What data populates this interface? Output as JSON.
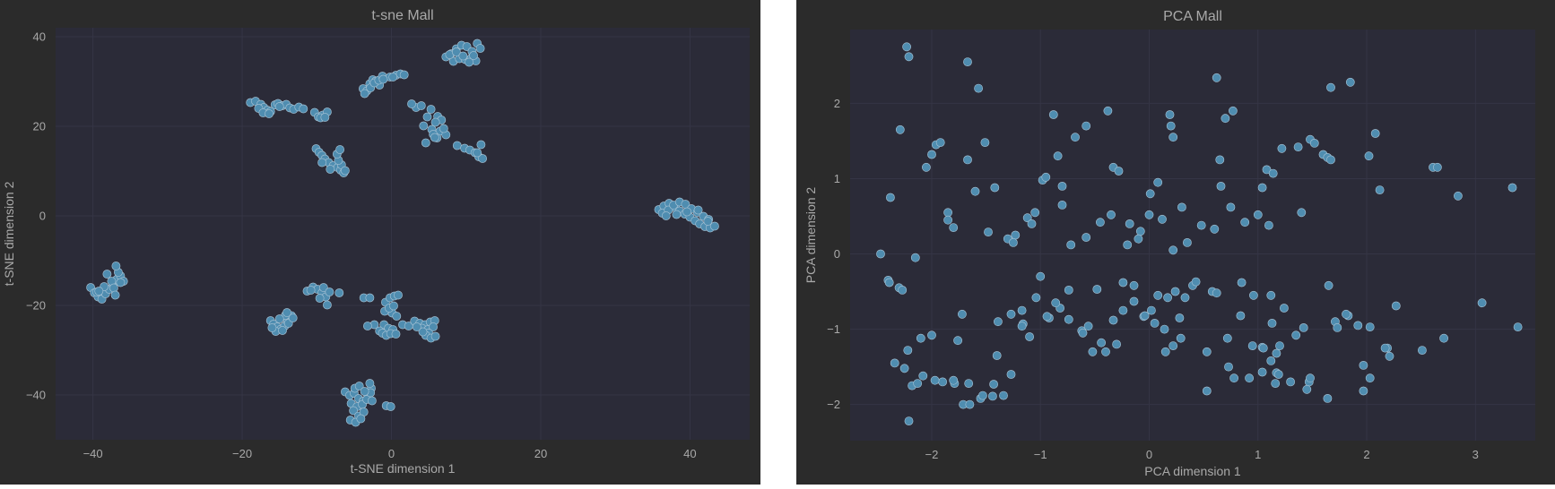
{
  "theme": {
    "figure_bg": "#2b2b2b",
    "axes_bg": "#2b2b38",
    "grid": "#353545",
    "text": "#a9a9a9",
    "point": "#4f8db0",
    "point_edge": "#a9c4d6"
  },
  "chart_data": [
    {
      "type": "scatter",
      "title": "t-sne Mall",
      "xlabel": "t-SNE dimension 1",
      "ylabel": "t-SNE dimension 2",
      "xlim": [
        -45,
        48
      ],
      "ylim": [
        -50,
        42
      ],
      "xticks": [
        -40,
        -20,
        0,
        20,
        40
      ],
      "yticks": [
        -40,
        -20,
        0,
        20,
        40
      ],
      "xtick_labels": [
        "−40",
        "−20",
        "0",
        "20",
        "40"
      ],
      "ytick_labels": [
        "−40",
        "−20",
        "0",
        "20",
        "40"
      ],
      "grid": true,
      "x": [
        -18.9,
        -18.2,
        -17.5,
        -17.1,
        -16.6,
        -16.2,
        -15.6,
        -15.2,
        -14.6,
        -14.1,
        -13.6,
        -13.1,
        -12.4,
        -11.8,
        -17.8,
        -17.2,
        -16.4,
        -15.0,
        -10.3,
        -9.8,
        -9.2,
        -8.6,
        -9.5,
        -8.9,
        -3.8,
        -3.3,
        -2.9,
        -2.5,
        -2.1,
        -1.6,
        -3.6,
        -2.8,
        -2.3,
        -1.7,
        -1.2,
        -0.2,
        0.6,
        1.2,
        1.7,
        -1.1,
        0.2,
        3.3,
        2.7,
        4.0,
        5.3,
        6.2,
        4.8,
        6.7,
        5.9,
        4.3,
        5.4,
        6.5,
        5.6,
        7.3,
        7.0,
        6.1,
        4.6,
        5.8,
        8.8,
        9.8,
        10.5,
        11.2,
        11.7,
        12.2,
        11.5,
        12.0,
        7.3,
        8.0,
        8.7,
        9.4,
        10.1,
        10.8,
        11.5,
        11.9,
        8.3,
        9.1,
        9.9,
        10.7,
        11.3,
        7.8,
        8.7,
        9.6,
        10.4,
        11.0,
        -10.1,
        -9.7,
        -9.3,
        -8.9,
        -8.4,
        -7.8,
        -7.2,
        -6.8,
        -6.4,
        -6.7,
        -7.1,
        -7.3,
        -6.9,
        -6.2,
        -8.2,
        -9.3,
        35.8,
        36.5,
        37.2,
        38.0,
        38.6,
        39.3,
        40.0,
        40.7,
        41.3,
        42.0,
        42.7,
        43.3,
        36.3,
        37.1,
        37.8,
        38.6,
        39.4,
        40.2,
        41.0,
        41.8,
        42.5,
        36.8,
        38.2,
        39.6,
        41.1,
        42.4,
        -40.3,
        -39.8,
        -39.3,
        -38.8,
        -38.3,
        -37.8,
        -37.3,
        -36.8,
        -36.3,
        -35.9,
        -39.5,
        -38.5,
        -37.5,
        -36.6,
        -36.9,
        -38.1,
        -39.2,
        -37.2,
        -36.3,
        -37.0,
        -16.2,
        -15.8,
        -15.3,
        -14.8,
        -14.3,
        -13.9,
        -13.4,
        -15.5,
        -14.6,
        -13.8,
        -14.2,
        -15.0,
        -16.0,
        -13.2,
        -14.0,
        -11.3,
        -10.5,
        -9.9,
        -9.3,
        -8.8,
        -8.6,
        -9.6,
        -10.8,
        -9.1,
        -8.3,
        -7.0,
        -3.7,
        -2.9,
        -0.8,
        -0.2,
        0.4,
        0.9,
        -0.5,
        0.1,
        0.7,
        -0.9,
        -0.3,
        0.3,
        -1.0,
        -0.4,
        0.2,
        -2.3,
        -1.6,
        -1.2,
        -0.7,
        -0.1,
        0.6,
        -3.2,
        1.5,
        2.3,
        3.1,
        3.8,
        4.5,
        5.2,
        5.8,
        4.1,
        4.9,
        5.6,
        5.0,
        4.6,
        5.3,
        5.9,
        4.2,
        3.4,
        -6.2,
        -5.6,
        -5.0,
        -4.4,
        -3.8,
        -3.2,
        -2.7,
        -5.4,
        -4.6,
        -3.9,
        -3.3,
        -2.8,
        -5.1,
        -4.4,
        -3.7,
        -2.9,
        -5.5,
        -4.8,
        -4.1,
        -4.9,
        -4.3,
        -3.6,
        -0.7,
        -0.1,
        -2.6
      ],
      "y": [
        25.3,
        25.6,
        24.9,
        24.2,
        23.6,
        23.3,
        24.8,
        25.1,
        24.6,
        24.9,
        24.1,
        23.8,
        24.3,
        23.9,
        24.0,
        23.0,
        22.8,
        24.4,
        23.1,
        22.1,
        22.5,
        23.2,
        21.9,
        22.0,
        28.4,
        27.9,
        29.5,
        30.4,
        30.1,
        29.2,
        27.3,
        28.6,
        29.7,
        30.3,
        31.2,
        31.0,
        31.4,
        31.7,
        31.5,
        30.5,
        31.0,
        24.2,
        25.0,
        24.6,
        23.8,
        22.2,
        22.1,
        21.4,
        20.9,
        20.1,
        19.3,
        18.9,
        18.2,
        18.1,
        19.5,
        17.4,
        16.3,
        17.5,
        15.7,
        15.1,
        14.7,
        14.1,
        13.2,
        12.8,
        14.1,
        15.9,
        35.5,
        36.2,
        37.3,
        38.1,
        37.8,
        36.7,
        38.5,
        37.4,
        34.5,
        35.1,
        34.9,
        35.2,
        34.6,
        36.0,
        36.6,
        35.7,
        34.3,
        35.8,
        15.0,
        14.2,
        13.5,
        12.7,
        11.9,
        11.2,
        10.8,
        10.2,
        9.6,
        11.4,
        12.4,
        13.8,
        14.8,
        10.1,
        10.4,
        11.9,
        1.4,
        2.2,
        2.8,
        1.9,
        1.1,
        0.4,
        -0.3,
        -1.1,
        -1.8,
        -2.4,
        -2.7,
        -2.3,
        0.6,
        1.3,
        2.4,
        3.1,
        2.6,
        1.6,
        0.8,
        -0.1,
        -0.8,
        0.0,
        0.3,
        0.9,
        1.3,
        -1.2,
        -16.0,
        -17.2,
        -18.1,
        -18.6,
        -17.4,
        -16.4,
        -15.3,
        -14.2,
        -13.4,
        -14.6,
        -17.0,
        -15.8,
        -14.6,
        -12.6,
        -11.2,
        -13.0,
        -16.8,
        -16.1,
        -14.9,
        -17.7,
        -23.4,
        -24.2,
        -24.8,
        -25.3,
        -24.6,
        -23.6,
        -22.3,
        -25.8,
        -25.6,
        -24.0,
        -22.2,
        -23.0,
        -25.0,
        -22.8,
        -21.6,
        -16.8,
        -15.9,
        -16.4,
        -17.2,
        -18.1,
        -19.9,
        -18.4,
        -16.6,
        -16.0,
        -17.0,
        -17.2,
        -18.3,
        -18.3,
        -19.3,
        -18.3,
        -17.9,
        -17.7,
        -21.1,
        -21.7,
        -22.4,
        -21.3,
        -20.6,
        -20.1,
        -24.3,
        -25.1,
        -25.4,
        -24.3,
        -25.7,
        -26.2,
        -26.7,
        -26.3,
        -26.4,
        -24.6,
        -24.3,
        -24.6,
        -23.5,
        -24.0,
        -24.3,
        -23.7,
        -23.4,
        -25.1,
        -25.4,
        -24.8,
        -26.2,
        -26.7,
        -27.3,
        -26.9,
        -25.9,
        -24.8,
        -39.3,
        -40.1,
        -39.6,
        -40.8,
        -41.4,
        -39.9,
        -38.5,
        -41.9,
        -42.6,
        -42.1,
        -41.0,
        -39.5,
        -43.5,
        -44.7,
        -43.8,
        -37.4,
        -45.6,
        -46.1,
        -45.3,
        -38.5,
        -38.0,
        -39.2,
        -42.4,
        -42.6,
        -41.3
      ]
    },
    {
      "type": "scatter",
      "title": "PCA Mall",
      "xlabel": "PCA dimension 1",
      "ylabel": "PCA dimension 2",
      "xlim": [
        -2.75,
        3.55
      ],
      "ylim": [
        -2.48,
        2.98
      ],
      "xticks": [
        -2,
        -1,
        0,
        1,
        2,
        3
      ],
      "yticks": [
        -2,
        -1,
        0,
        1,
        2
      ],
      "xtick_labels": [
        "−2",
        "−1",
        "0",
        "1",
        "2",
        "3"
      ],
      "ytick_labels": [
        "−2",
        "−1",
        "0",
        "1",
        "2"
      ],
      "grid": true,
      "x": [
        -2.23,
        -2.21,
        -1.67,
        -1.57,
        0.62,
        1.85,
        1.67,
        -2.29,
        -2.38,
        -2.47,
        -2.3,
        -2.15,
        -2.05,
        -2.0,
        -1.96,
        -1.92,
        -1.85,
        -1.85,
        -1.8,
        -1.67,
        -1.6,
        -1.51,
        -1.42,
        -1.3,
        -1.23,
        -1.12,
        -1.08,
        -0.98,
        -0.88,
        -0.84,
        -0.8,
        -0.68,
        -0.58,
        -0.38,
        -0.33,
        -0.28,
        -0.18,
        -0.08,
        0.01,
        0.08,
        0.19,
        0.2,
        0.22,
        0.3,
        0.65,
        0.66,
        0.7,
        0.77,
        1.04,
        1.08,
        1.14,
        1.22,
        1.37,
        1.4,
        1.48,
        1.52,
        1.6,
        1.64,
        1.67,
        2.02,
        2.08,
        2.12,
        2.61,
        2.65,
        2.84,
        3.34,
        -1.48,
        -1.72,
        -1.76,
        -1.4,
        -1.1,
        -1.0,
        -0.92,
        -0.82,
        -0.74,
        -0.62,
        -0.56,
        -0.48,
        -0.4,
        -0.3,
        -0.24,
        -0.14,
        -0.05,
        0.02,
        0.08,
        0.17,
        0.24,
        0.33,
        0.4,
        0.58,
        0.84,
        0.96,
        1.04,
        1.12,
        1.2,
        1.42,
        1.47,
        1.83,
        1.92,
        2.03,
        2.19,
        -1.25,
        -1.05,
        -0.95,
        -0.8,
        -0.72,
        -0.58,
        -0.45,
        -0.35,
        -0.2,
        -0.1,
        0.0,
        0.12,
        0.22,
        0.35,
        0.48,
        0.6,
        0.75,
        0.88,
        1.0,
        1.1,
        -2.4,
        -2.22,
        -2.1,
        -2.0,
        -1.9,
        -1.79,
        -1.66,
        -1.55,
        -1.44,
        -1.34,
        -1.27,
        -1.16,
        -1.04,
        -0.94,
        -0.86,
        -0.74,
        -0.61,
        -0.52,
        -0.44,
        -0.33,
        -0.24,
        -0.14,
        -0.04,
        0.05,
        0.15,
        0.22,
        0.28,
        0.43,
        0.53,
        0.62,
        0.72,
        0.78,
        0.85,
        0.95,
        1.04,
        1.13,
        1.17,
        1.24,
        1.35,
        1.48,
        1.65,
        1.71,
        1.73,
        1.81,
        1.97,
        2.03,
        2.17,
        2.21,
        2.27,
        2.51,
        2.71,
        3.06,
        3.39,
        -2.39,
        -2.34,
        -2.27,
        -2.25,
        -2.21,
        -2.18,
        -2.13,
        -2.08,
        -1.97,
        -1.8,
        -1.71,
        -1.65,
        -1.53,
        -1.43,
        -1.39,
        -1.27,
        -1.17,
        -1.17,
        0.14,
        0.29,
        0.53,
        0.73,
        0.92,
        1.05,
        1.12,
        1.16,
        1.17,
        1.19,
        1.3,
        1.45,
        1.64,
        1.97
      ],
      "y": [
        2.75,
        2.62,
        2.55,
        2.2,
        2.34,
        2.28,
        2.21,
        1.65,
        0.75,
        0.0,
        -0.45,
        -0.05,
        1.15,
        1.32,
        1.45,
        1.48,
        0.55,
        0.45,
        0.35,
        1.25,
        0.83,
        1.48,
        0.88,
        0.2,
        0.25,
        0.48,
        0.4,
        0.98,
        1.85,
        1.3,
        0.9,
        1.55,
        1.7,
        1.9,
        1.15,
        1.1,
        0.4,
        0.3,
        0.8,
        0.95,
        1.85,
        1.7,
        1.55,
        0.62,
        1.25,
        0.9,
        1.8,
        1.9,
        0.88,
        1.12,
        1.07,
        1.4,
        1.42,
        0.55,
        1.52,
        1.47,
        1.32,
        1.28,
        1.25,
        1.3,
        1.6,
        0.85,
        1.15,
        1.15,
        0.77,
        0.88,
        0.29,
        -0.8,
        -1.15,
        -1.35,
        -1.1,
        -0.3,
        -0.85,
        -0.72,
        -0.48,
        -1.02,
        -0.96,
        -0.47,
        -1.3,
        -1.2,
        -0.75,
        -0.42,
        -0.83,
        -0.75,
        -0.55,
        -0.58,
        -0.5,
        -0.58,
        -0.42,
        -0.5,
        -0.82,
        -0.55,
        -1.24,
        -0.55,
        -1.22,
        -0.98,
        -1.7,
        -0.82,
        -0.95,
        -0.97,
        -1.25,
        0.15,
        0.55,
        1.02,
        0.65,
        0.12,
        0.22,
        0.42,
        0.52,
        0.12,
        0.2,
        0.52,
        0.46,
        0.05,
        0.15,
        0.38,
        0.33,
        0.62,
        0.42,
        0.52,
        0.38,
        -0.35,
        -1.28,
        -1.12,
        -1.08,
        -1.7,
        -1.72,
        -1.72,
        -1.92,
        -1.89,
        -1.88,
        -1.6,
        -0.93,
        -0.58,
        -0.83,
        -0.65,
        -0.87,
        -1.05,
        -1.3,
        -1.18,
        -0.88,
        -0.38,
        -0.63,
        -0.82,
        -0.92,
        -1.3,
        -1.22,
        -0.85,
        -0.37,
        -1.3,
        -0.52,
        -1.12,
        -1.65,
        -0.38,
        -1.22,
        -1.57,
        -0.92,
        -1.32,
        -0.72,
        -1.08,
        -1.65,
        -0.42,
        -0.9,
        -0.98,
        -0.8,
        -1.48,
        -1.65,
        -1.25,
        -1.36,
        -0.69,
        -1.28,
        -1.12,
        -0.65,
        -0.97,
        -0.38,
        -1.45,
        -0.48,
        -1.52,
        -2.22,
        -1.75,
        -1.72,
        -1.62,
        -1.68,
        -1.68,
        -2.0,
        -2.0,
        -1.88,
        -1.73,
        -0.9,
        -0.8,
        -0.96,
        -0.75,
        -1.0,
        -1.12,
        -1.82,
        -1.5,
        -1.65,
        -1.25,
        -1.42,
        -1.72,
        -1.58,
        -1.6,
        -1.7,
        -1.8,
        -1.92,
        -1.82
      ]
    }
  ]
}
